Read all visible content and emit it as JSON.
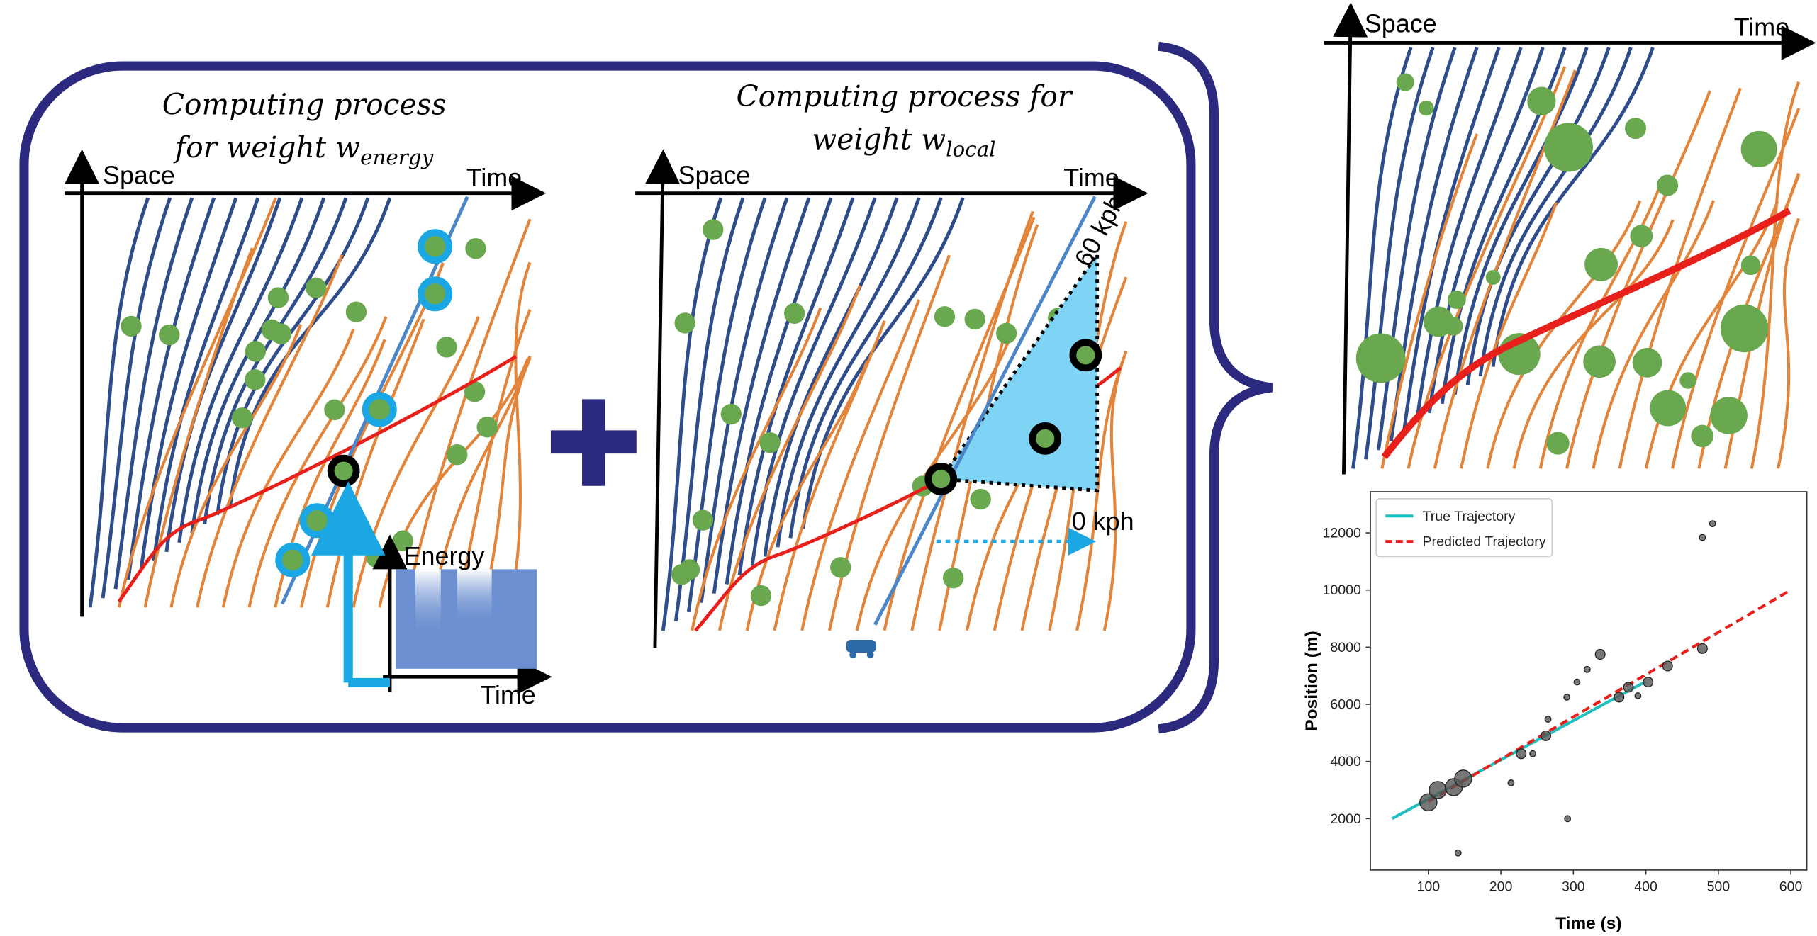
{
  "panels": [
    {
      "title_line1": "Computing process",
      "title_line2": "for weight w",
      "title_subscript": "energy",
      "y_axis": "Space",
      "x_axis": "Time"
    },
    {
      "title_line1": "Computing process for",
      "title_line2": "weight w",
      "title_subscript": "local",
      "y_axis": "Space",
      "x_axis": "Time",
      "speed_high": "60 kph",
      "speed_low": "0 kph"
    },
    {
      "y_axis": "Space",
      "x_axis": "Time"
    }
  ],
  "energy_inset": {
    "y_axis": "Energy",
    "x_axis": "Time"
  },
  "chart_data": {
    "type": "scatter",
    "x_label": "Time (s)",
    "y_label": "Position (m)",
    "xlim": [
      20,
      622
    ],
    "ylim": [
      200,
      13440
    ],
    "xticks": [
      100,
      200,
      300,
      400,
      500,
      600
    ],
    "yticks": [
      2000,
      4000,
      6000,
      8000,
      10000,
      12000
    ],
    "grid": false,
    "legend": "upper left",
    "series": [
      {
        "name": "True Trajectory",
        "color": "#1fbfbf",
        "style": "solid",
        "x": [
          50,
          400
        ],
        "values": [
          2000,
          6800
        ]
      },
      {
        "name": "Predicted Trajectory",
        "color": "#e8201c",
        "style": "dashed",
        "x": [
          100,
          600
        ],
        "values": [
          2600,
          10000
        ]
      }
    ],
    "points": {
      "color": "#555555",
      "x": [
        100,
        113,
        135,
        148,
        214,
        228,
        244,
        262,
        265,
        291,
        305,
        319,
        337,
        292,
        141,
        363,
        376,
        389,
        403,
        430,
        478,
        478,
        492
      ],
      "values": [
        2570,
        3000,
        3100,
        3400,
        3250,
        4270,
        4270,
        4900,
        5480,
        6250,
        6780,
        7220,
        7750,
        2000,
        800,
        6250,
        6600,
        6300,
        6780,
        7340,
        7950,
        11840,
        12320
      ],
      "sizes": [
        4,
        4,
        4,
        4,
        1,
        2,
        1,
        2,
        1,
        1,
        1,
        1,
        2,
        1,
        1,
        2,
        2,
        1,
        2,
        2,
        2,
        1,
        1
      ]
    }
  }
}
